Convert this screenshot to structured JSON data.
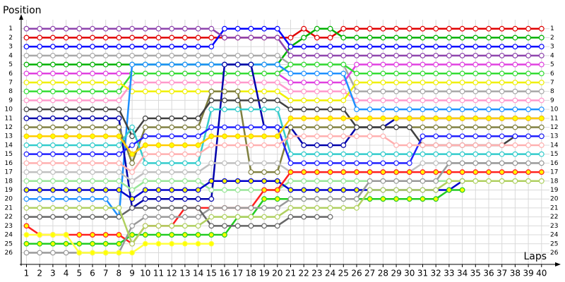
{
  "chart_data": {
    "type": "line",
    "y_label": "Position",
    "x_label": "Laps",
    "x": [
      1,
      2,
      3,
      4,
      5,
      6,
      7,
      8,
      9,
      10,
      11,
      12,
      13,
      14,
      15,
      16,
      17,
      18,
      19,
      20,
      21,
      22,
      23,
      24,
      25,
      26,
      27,
      28,
      29,
      30,
      31,
      32,
      33,
      34,
      35,
      36,
      37,
      38,
      39,
      40
    ],
    "xlim": [
      0.6,
      40.6
    ],
    "xticks": [
      1,
      2,
      3,
      4,
      5,
      6,
      7,
      8,
      9,
      10,
      11,
      12,
      13,
      14,
      15,
      16,
      17,
      18,
      19,
      20,
      21,
      22,
      23,
      24,
      25,
      26,
      27,
      28,
      29,
      30,
      31,
      32,
      33,
      34,
      35,
      36,
      37,
      38,
      39,
      40
    ],
    "ylim": [
      27.3,
      0
    ],
    "yticks": [
      1,
      2,
      3,
      4,
      5,
      6,
      7,
      8,
      9,
      10,
      11,
      12,
      13,
      14,
      15,
      16,
      17,
      18,
      19,
      20,
      21,
      22,
      23,
      24,
      25,
      26
    ],
    "grid": true,
    "series": [
      {
        "color": "#e00000",
        "marker_color": "#ffffff",
        "values": [
          2,
          2,
          2,
          2,
          2,
          2,
          2,
          2,
          2,
          2,
          2,
          2,
          2,
          2,
          2,
          2,
          2,
          2,
          2,
          2,
          2,
          1,
          2,
          2,
          1,
          1,
          1,
          1,
          1,
          1,
          1,
          1,
          1,
          1,
          1,
          1,
          1,
          1,
          1,
          1
        ]
      },
      {
        "color": "#00b000",
        "marker_color": "#ffffff",
        "values": [
          5,
          5,
          5,
          5,
          5,
          5,
          5,
          5,
          5,
          5,
          5,
          5,
          5,
          5,
          5,
          5,
          5,
          5,
          5,
          5,
          3,
          2,
          1,
          1,
          2,
          2,
          2,
          2,
          2,
          2,
          2,
          2,
          2,
          2,
          2,
          2,
          2,
          2,
          2,
          2
        ]
      },
      {
        "color": "#0000ff",
        "marker_color": "#ffffff",
        "values": [
          3,
          3,
          3,
          3,
          3,
          3,
          3,
          3,
          3,
          3,
          3,
          3,
          3,
          3,
          3,
          1,
          1,
          1,
          1,
          1,
          3,
          3,
          3,
          3,
          3,
          3,
          3,
          3,
          3,
          3,
          3,
          3,
          3,
          3,
          3,
          3,
          3,
          3,
          3,
          3
        ]
      },
      {
        "color": "#8e44ad",
        "marker_color": "#ffffff",
        "values": [
          1,
          1,
          1,
          1,
          1,
          1,
          1,
          1,
          1,
          1,
          1,
          1,
          1,
          1,
          1,
          2,
          2,
          2,
          2,
          2,
          4,
          4,
          4,
          4,
          4,
          4,
          4,
          4,
          4,
          4,
          4,
          4,
          4,
          4,
          4,
          4,
          4,
          4,
          4,
          4
        ]
      },
      {
        "color": "#a8a8a8",
        "marker_color": "#ffffff",
        "values": [
          4,
          4,
          4,
          4,
          4,
          4,
          4,
          4,
          4,
          4,
          4,
          4,
          4,
          4,
          4,
          4,
          4,
          4,
          4,
          4,
          5,
          5,
          5,
          5,
          5,
          8,
          8,
          8,
          8,
          8,
          8,
          8,
          8,
          8,
          8,
          8,
          8,
          8,
          8,
          8
        ]
      },
      {
        "color": "#e040e0",
        "marker_color": "#ffffff",
        "values": [
          6,
          6,
          6,
          6,
          6,
          6,
          6,
          6,
          6,
          6,
          6,
          6,
          6,
          6,
          6,
          6,
          6,
          6,
          6,
          6,
          7,
          7,
          7,
          7,
          7,
          5,
          5,
          5,
          5,
          5,
          5,
          5,
          5,
          5,
          5,
          5,
          5,
          5,
          5,
          5
        ]
      },
      {
        "color": "#33dd33",
        "marker_color": "#ffffff",
        "values": [
          8,
          8,
          8,
          8,
          8,
          8,
          8,
          8,
          6,
          6,
          6,
          6,
          6,
          6,
          6,
          6,
          6,
          6,
          6,
          6,
          5,
          5,
          5,
          5,
          5,
          6,
          6,
          6,
          6,
          6,
          6,
          6,
          6,
          6,
          6,
          6,
          6,
          6,
          6,
          6
        ]
      },
      {
        "color": "#ff99cc",
        "marker_color": "#ffffff",
        "values": [
          9,
          9,
          9,
          9,
          9,
          9,
          9,
          9,
          7,
          7,
          7,
          7,
          7,
          7,
          7,
          7,
          7,
          7,
          7,
          7,
          8,
          8,
          8,
          8,
          8,
          9,
          9,
          9,
          9,
          9,
          9,
          9,
          9,
          9,
          9,
          9,
          9,
          9,
          9,
          9
        ]
      },
      {
        "color": "#f0f000",
        "marker_color": "#ffffff",
        "values": [
          7,
          7,
          7,
          7,
          7,
          7,
          7,
          7,
          8,
          8,
          8,
          8,
          8,
          8,
          8,
          8,
          8,
          8,
          8,
          8,
          9,
          9,
          9,
          9,
          9,
          7,
          7,
          7,
          7,
          7,
          7,
          7,
          7,
          7,
          7,
          7,
          7,
          7,
          7,
          7
        ]
      },
      {
        "color": "#1e90ff",
        "marker_color": "#ffffff",
        "values": [
          20,
          20,
          20,
          20,
          20,
          20,
          20,
          22,
          5,
          5,
          5,
          5,
          5,
          5,
          5,
          5,
          5,
          5,
          5,
          5,
          6,
          6,
          6,
          6,
          6,
          10,
          10,
          10,
          10,
          10,
          10,
          10,
          10,
          10,
          10,
          10,
          10,
          10,
          10,
          10
        ]
      },
      {
        "color": "#0000aa",
        "marker_color": "#ffffff",
        "values": [
          11,
          11,
          11,
          11,
          11,
          11,
          11,
          11,
          21,
          20,
          20,
          20,
          20,
          20,
          20,
          5,
          5,
          5,
          12,
          12,
          12,
          14,
          14,
          14,
          14,
          12,
          12,
          12,
          11,
          11,
          11,
          11,
          11,
          11,
          11,
          11,
          11,
          11,
          11,
          11
        ]
      },
      {
        "color": "#808040",
        "marker_color": "#ffffff",
        "values": [
          12,
          12,
          12,
          12,
          12,
          12,
          12,
          12,
          16,
          12,
          12,
          12,
          12,
          12,
          8,
          8,
          8,
          17,
          17,
          17,
          12,
          12,
          12,
          12,
          12,
          12,
          12,
          12,
          12,
          12,
          12,
          12,
          12,
          12,
          12,
          12,
          12,
          12,
          12,
          12
        ]
      },
      {
        "color": "#404040",
        "marker_color": "#ffffff",
        "values": [
          10,
          10,
          10,
          10,
          10,
          10,
          10,
          10,
          13,
          11,
          11,
          11,
          11,
          11,
          9,
          9,
          9,
          9,
          9,
          9,
          10,
          10,
          10,
          10,
          10,
          12,
          12,
          12,
          12,
          12,
          14,
          14,
          14,
          14,
          14,
          14,
          14,
          13,
          13,
          13
        ]
      },
      {
        "color": "#33cccc",
        "marker_color": "#ffffff",
        "values": [
          14,
          14,
          14,
          14,
          14,
          14,
          14,
          14,
          12,
          16,
          16,
          16,
          16,
          16,
          10,
          10,
          10,
          10,
          10,
          10,
          15,
          15,
          15,
          15,
          15,
          15,
          15,
          15,
          15,
          15,
          15,
          15,
          15,
          15,
          15,
          15,
          15,
          15,
          15,
          15
        ]
      },
      {
        "color": "#2020ff",
        "marker_color": "#ffffff",
        "values": [
          15,
          15,
          15,
          15,
          15,
          15,
          15,
          15,
          14,
          13,
          13,
          13,
          13,
          13,
          12,
          12,
          12,
          12,
          12,
          12,
          16,
          16,
          16,
          16,
          16,
          16,
          16,
          16,
          16,
          16,
          13,
          13,
          13,
          13,
          13,
          13,
          13,
          13,
          13,
          13
        ]
      },
      {
        "color": "#ffcc00",
        "marker_color": "#ffff00",
        "values": [
          13,
          13,
          13,
          13,
          13,
          13,
          13,
          13,
          15,
          14,
          14,
          14,
          14,
          14,
          13,
          13,
          13,
          13,
          13,
          13,
          11,
          11,
          11,
          11,
          11,
          11,
          11,
          11,
          11,
          11,
          11,
          11,
          11,
          11,
          11,
          11,
          11,
          11,
          11,
          11
        ]
      },
      {
        "color": "#ffb0b0",
        "marker_color": "#ffffff",
        "values": [
          16,
          16,
          16,
          16,
          16,
          16,
          16,
          16,
          17,
          15,
          15,
          15,
          15,
          15,
          14,
          14,
          14,
          14,
          14,
          14,
          13,
          13,
          13,
          13,
          13,
          13,
          13,
          13,
          14,
          14,
          14,
          14,
          14,
          14,
          14,
          14,
          14,
          14,
          14,
          14
        ]
      },
      {
        "color": "#c0c0c0",
        "marker_color": "#ffffff",
        "values": [
          17,
          17,
          17,
          17,
          17,
          17,
          17,
          17,
          18,
          17,
          17,
          17,
          17,
          17,
          16,
          16,
          16,
          16,
          16,
          16,
          17,
          17,
          17,
          17,
          17,
          17,
          17,
          17,
          17,
          17,
          16,
          16,
          16,
          16,
          16,
          16,
          16,
          16,
          null,
          null
        ]
      },
      {
        "color": "#99e699",
        "marker_color": "#ffffff",
        "values": [
          18,
          18,
          18,
          18,
          18,
          18,
          18,
          18,
          19,
          18,
          18,
          18,
          18,
          18,
          19,
          19,
          19,
          19,
          19,
          19,
          18,
          18,
          18,
          18,
          18,
          18,
          18,
          18,
          18,
          18,
          18,
          18,
          18,
          18,
          18,
          18,
          18,
          18,
          18,
          18
        ]
      },
      {
        "color": "#0000cc",
        "marker_color": "#ffff00",
        "values": [
          19,
          19,
          19,
          19,
          19,
          19,
          19,
          19,
          20,
          19,
          19,
          19,
          19,
          19,
          18,
          18,
          18,
          18,
          18,
          18,
          19,
          19,
          19,
          19,
          19,
          19,
          19,
          19,
          19,
          19,
          19,
          19,
          19,
          18,
          null,
          null,
          null,
          null,
          null,
          null
        ]
      },
      {
        "color": "#ff2020",
        "marker_color": "#ffff00",
        "values": [
          23,
          24,
          24,
          24,
          24,
          24,
          24,
          24,
          25,
          23,
          23,
          23,
          21,
          21,
          21,
          21,
          21,
          21,
          19,
          19,
          17,
          17,
          17,
          17,
          17,
          17,
          17,
          17,
          17,
          17,
          17,
          17,
          17,
          17,
          17,
          17,
          17,
          17,
          17,
          17
        ]
      },
      {
        "color": "#22cc22",
        "marker_color": "#ffff00",
        "values": [
          25,
          25,
          25,
          25,
          25,
          25,
          25,
          25,
          24,
          24,
          24,
          24,
          24,
          24,
          24,
          24,
          22,
          22,
          20,
          20,
          20,
          20,
          20,
          20,
          20,
          20,
          20,
          20,
          20,
          20,
          20,
          20,
          19,
          19,
          null,
          null,
          null,
          null,
          null,
          null
        ]
      },
      {
        "color": "#999999",
        "marker_color": "#ffffff",
        "values": [
          26,
          26,
          26,
          26,
          26,
          26,
          26,
          26,
          23,
          22,
          22,
          22,
          22,
          22,
          21,
          21,
          21,
          21,
          21,
          21,
          20,
          20,
          20,
          20,
          20,
          20,
          18,
          18,
          18,
          18,
          18,
          18,
          16,
          16,
          16,
          16,
          16,
          16,
          16,
          16
        ]
      },
      {
        "color": "#666666",
        "marker_color": "#ffffff",
        "values": [
          22,
          22,
          22,
          22,
          22,
          22,
          22,
          22,
          21,
          21,
          21,
          21,
          21,
          21,
          23,
          23,
          23,
          23,
          23,
          23,
          22,
          22,
          22,
          22,
          null,
          null,
          null,
          null,
          null,
          null,
          null,
          null,
          null,
          null,
          null,
          null,
          null,
          null,
          null,
          null
        ]
      },
      {
        "color": "#b0d060",
        "marker_color": "#ffffff",
        "values": [
          21,
          21,
          21,
          21,
          21,
          21,
          21,
          21,
          25,
          23,
          23,
          23,
          23,
          23,
          22,
          22,
          22,
          22,
          22,
          22,
          21,
          21,
          21,
          21,
          21,
          21,
          19,
          19,
          19,
          19,
          19,
          19,
          18,
          18,
          18,
          18,
          18,
          18,
          18,
          18
        ]
      },
      {
        "color": "#ffff40",
        "marker_color": "#ffff00",
        "values": [
          24,
          24,
          24,
          24,
          26,
          26,
          26,
          26,
          26,
          25,
          25,
          25,
          25,
          25,
          25,
          null,
          null,
          null,
          null,
          null,
          null,
          null,
          null,
          null,
          null,
          null,
          null,
          null,
          null,
          null,
          null,
          null,
          null,
          null,
          null,
          null,
          null,
          null,
          null,
          null
        ]
      }
    ]
  }
}
